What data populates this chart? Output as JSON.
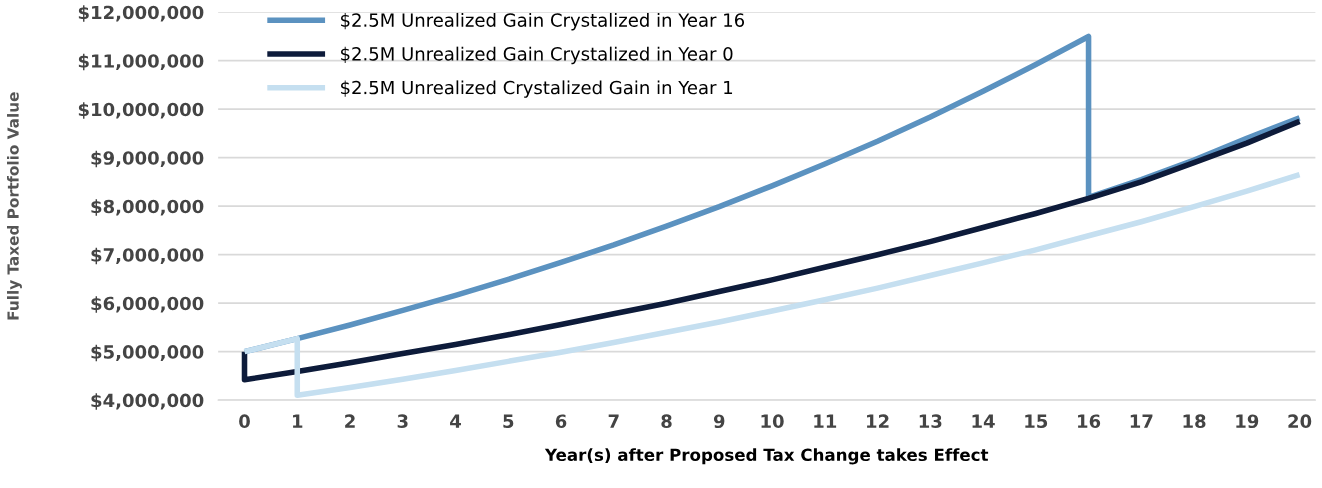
{
  "chart_data": {
    "type": "line",
    "xlabel": "Year(s) after Proposed Tax Change takes Effect",
    "ylabel": "Fully Taxed Portfolio Value",
    "xlim": [
      -0.5,
      20.3
    ],
    "xticks": [
      0,
      1,
      2,
      3,
      4,
      5,
      6,
      7,
      8,
      9,
      10,
      11,
      12,
      13,
      14,
      15,
      16,
      17,
      18,
      19,
      20
    ],
    "ylim": [
      4000000,
      12000000
    ],
    "yticks": [
      {
        "value": 4000000,
        "label": "$4,000,000"
      },
      {
        "value": 5000000,
        "label": "$5,000,000"
      },
      {
        "value": 6000000,
        "label": "$6,000,000"
      },
      {
        "value": 7000000,
        "label": "$7,000,000"
      },
      {
        "value": 8000000,
        "label": "$8,000,000"
      },
      {
        "value": 9000000,
        "label": "$9,000,000"
      },
      {
        "value": 10000000,
        "label": "$10,000,000"
      },
      {
        "value": 11000000,
        "label": "$11,000,000"
      },
      {
        "value": 12000000,
        "label": "$12,000,000"
      }
    ],
    "grid": "y",
    "legend": "top left",
    "marker": "none",
    "line_style": "solid",
    "series": [
      {
        "name": "$2.5M Unrealized Gain Crystalized in Year 16",
        "color": "#5b92c0",
        "x": [
          0,
          1,
          2,
          3,
          4,
          5,
          6,
          7,
          8,
          9,
          10,
          11,
          12,
          13,
          14,
          15,
          16,
          16,
          17,
          18,
          19,
          20
        ],
        "values": [
          5000000,
          5270000,
          5550000,
          5850000,
          6160000,
          6490000,
          6840000,
          7200000,
          7590000,
          7990000,
          8420000,
          8870000,
          9340000,
          9840000,
          10370000,
          10920000,
          11500000,
          8180000,
          8550000,
          8950000,
          9400000,
          9820000
        ]
      },
      {
        "name": "$2.5M Unrealized Gain Crystalized in Year 0",
        "color": "#0d1b3a",
        "x": [
          0,
          0,
          1,
          2,
          3,
          4,
          5,
          6,
          7,
          8,
          9,
          10,
          11,
          12,
          13,
          14,
          15,
          16,
          17,
          18,
          19,
          20
        ],
        "values": [
          5000000,
          4420000,
          4590000,
          4770000,
          4960000,
          5150000,
          5350000,
          5560000,
          5780000,
          6000000,
          6240000,
          6480000,
          6740000,
          7000000,
          7270000,
          7560000,
          7850000,
          8160000,
          8500000,
          8900000,
          9300000,
          9750000
        ]
      },
      {
        "name": "$2.5M Unrealized Crystalized Gain in Year 1",
        "color": "#c5dff0",
        "x": [
          0,
          1,
          1,
          2,
          3,
          4,
          5,
          6,
          7,
          8,
          9,
          10,
          11,
          12,
          13,
          14,
          15,
          16,
          17,
          18,
          19,
          20
        ],
        "values": [
          5000000,
          5270000,
          4100000,
          4260000,
          4430000,
          4610000,
          4800000,
          4990000,
          5190000,
          5400000,
          5610000,
          5840000,
          6070000,
          6310000,
          6570000,
          6830000,
          7100000,
          7390000,
          7680000,
          7990000,
          8310000,
          8650000
        ]
      }
    ]
  }
}
